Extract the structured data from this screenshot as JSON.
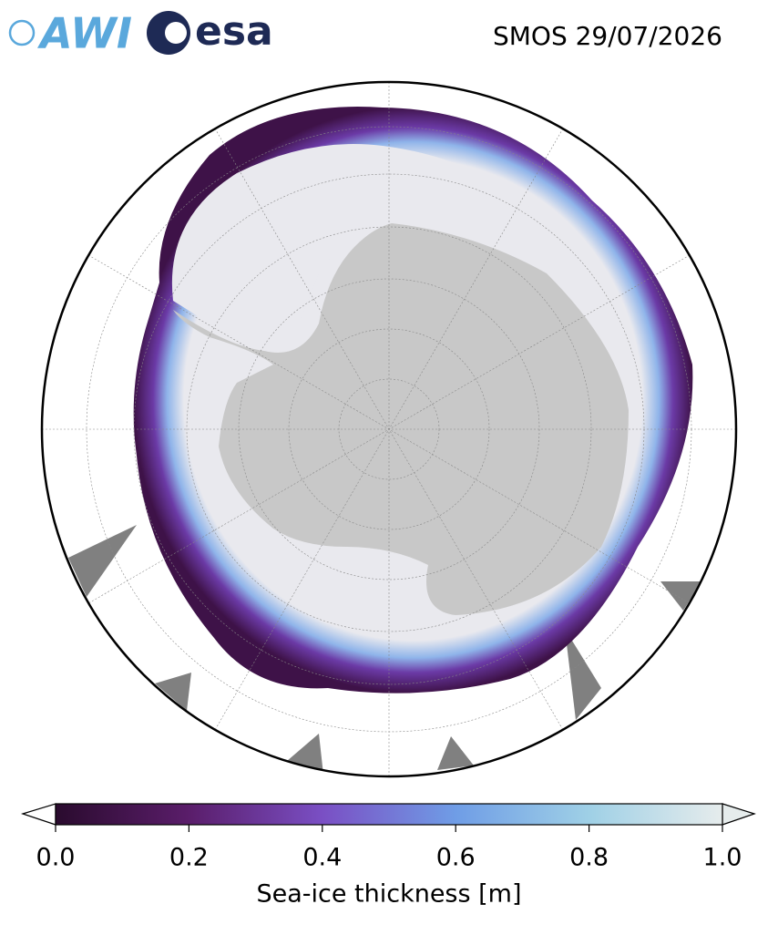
{
  "map": {
    "title": "SMOS 29/07/2026",
    "logos": [
      "AWI",
      "esa"
    ],
    "colorbar": {
      "label": "Sea-ice thickness [m]",
      "lim": [
        0,
        1
      ],
      "ticks": [
        {
          "value": 0,
          "label": "0.0"
        },
        0.2,
        0.4,
        0.6,
        0.8,
        {
          "value": 1,
          "label": "1.0"
        }
      ],
      "colors": [
        "#2a0b2e",
        "#5a1d6a",
        "#7a4fc4",
        "#6f9de6",
        "#9fd0e6",
        "#e6ecec"
      ]
    }
  }
}
